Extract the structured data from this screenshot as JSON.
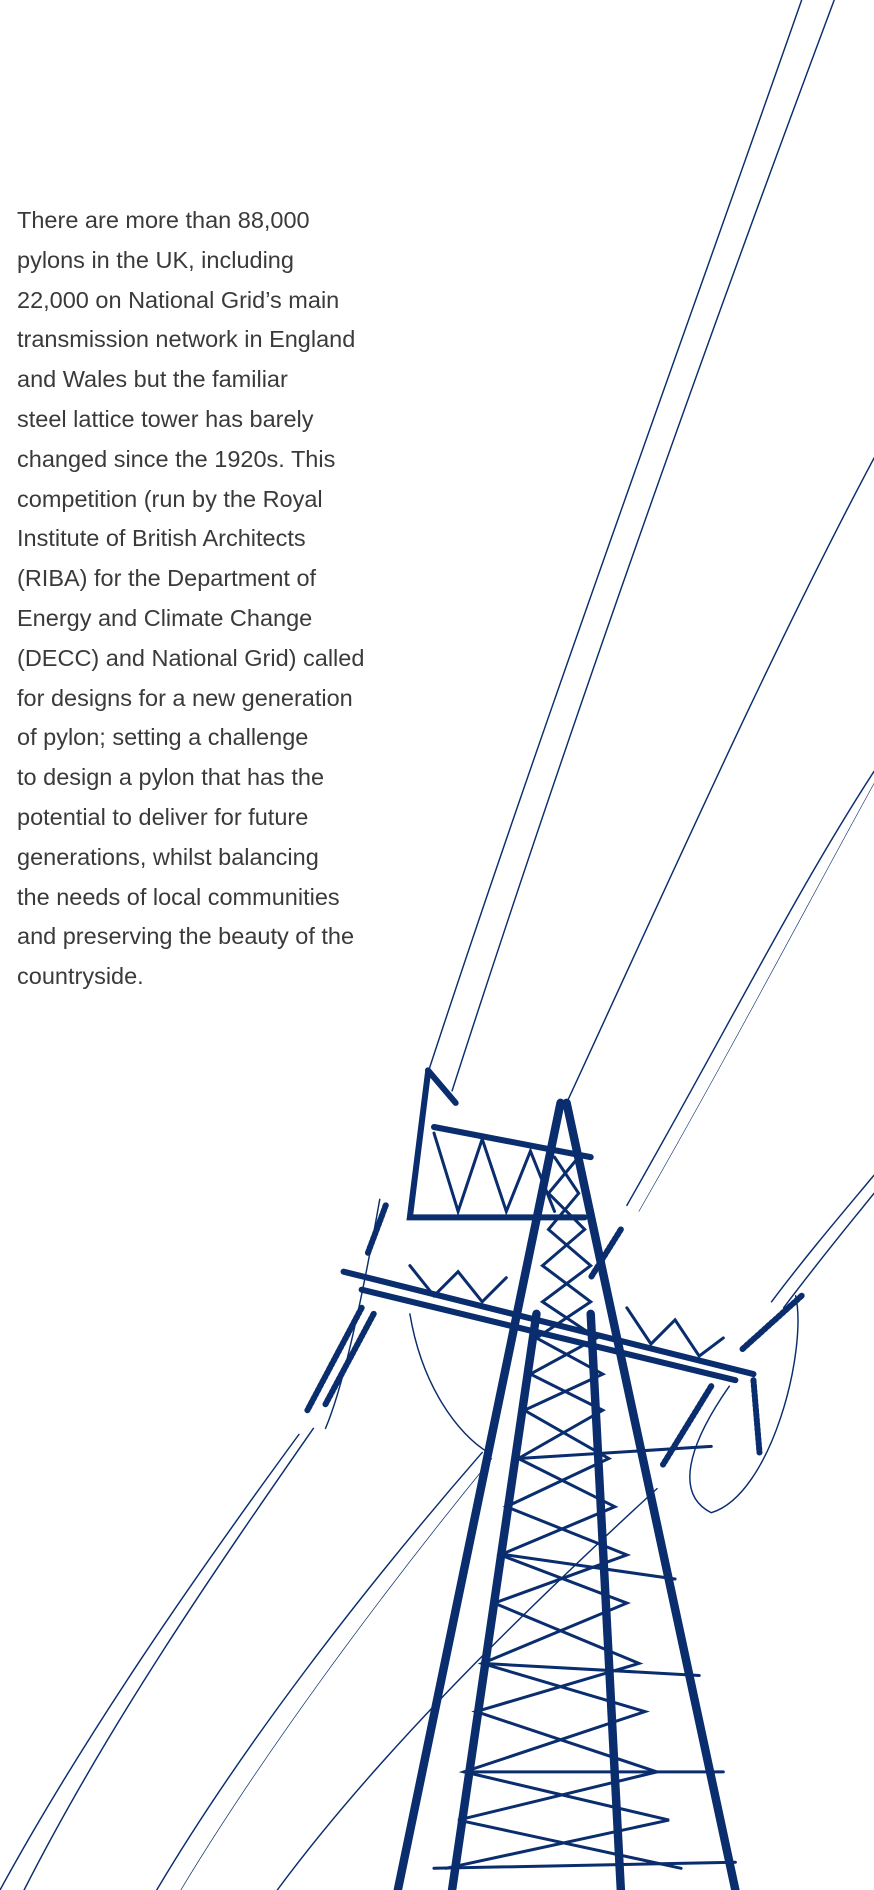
{
  "body": {
    "lines": [
      "There are more than 88,000",
      "pylons in the UK, including",
      "22,000 on National Grid’s main",
      "transmission network in England",
      "and Wales but the familiar",
      "steel lattice tower has barely",
      "changed since the 1920s. This",
      "competition (run by the Royal",
      "Institute of British Architects",
      "(RIBA) for the Department of",
      "Energy and Climate Change",
      "(DECC) and National Grid) called",
      "for designs for a new generation",
      "of pylon; setting a challenge",
      "to design a pylon that has the",
      "potential to deliver for future",
      "generations, whilst balancing",
      "the needs of local communities",
      "and preserving the beauty of the",
      "countryside."
    ]
  }
}
